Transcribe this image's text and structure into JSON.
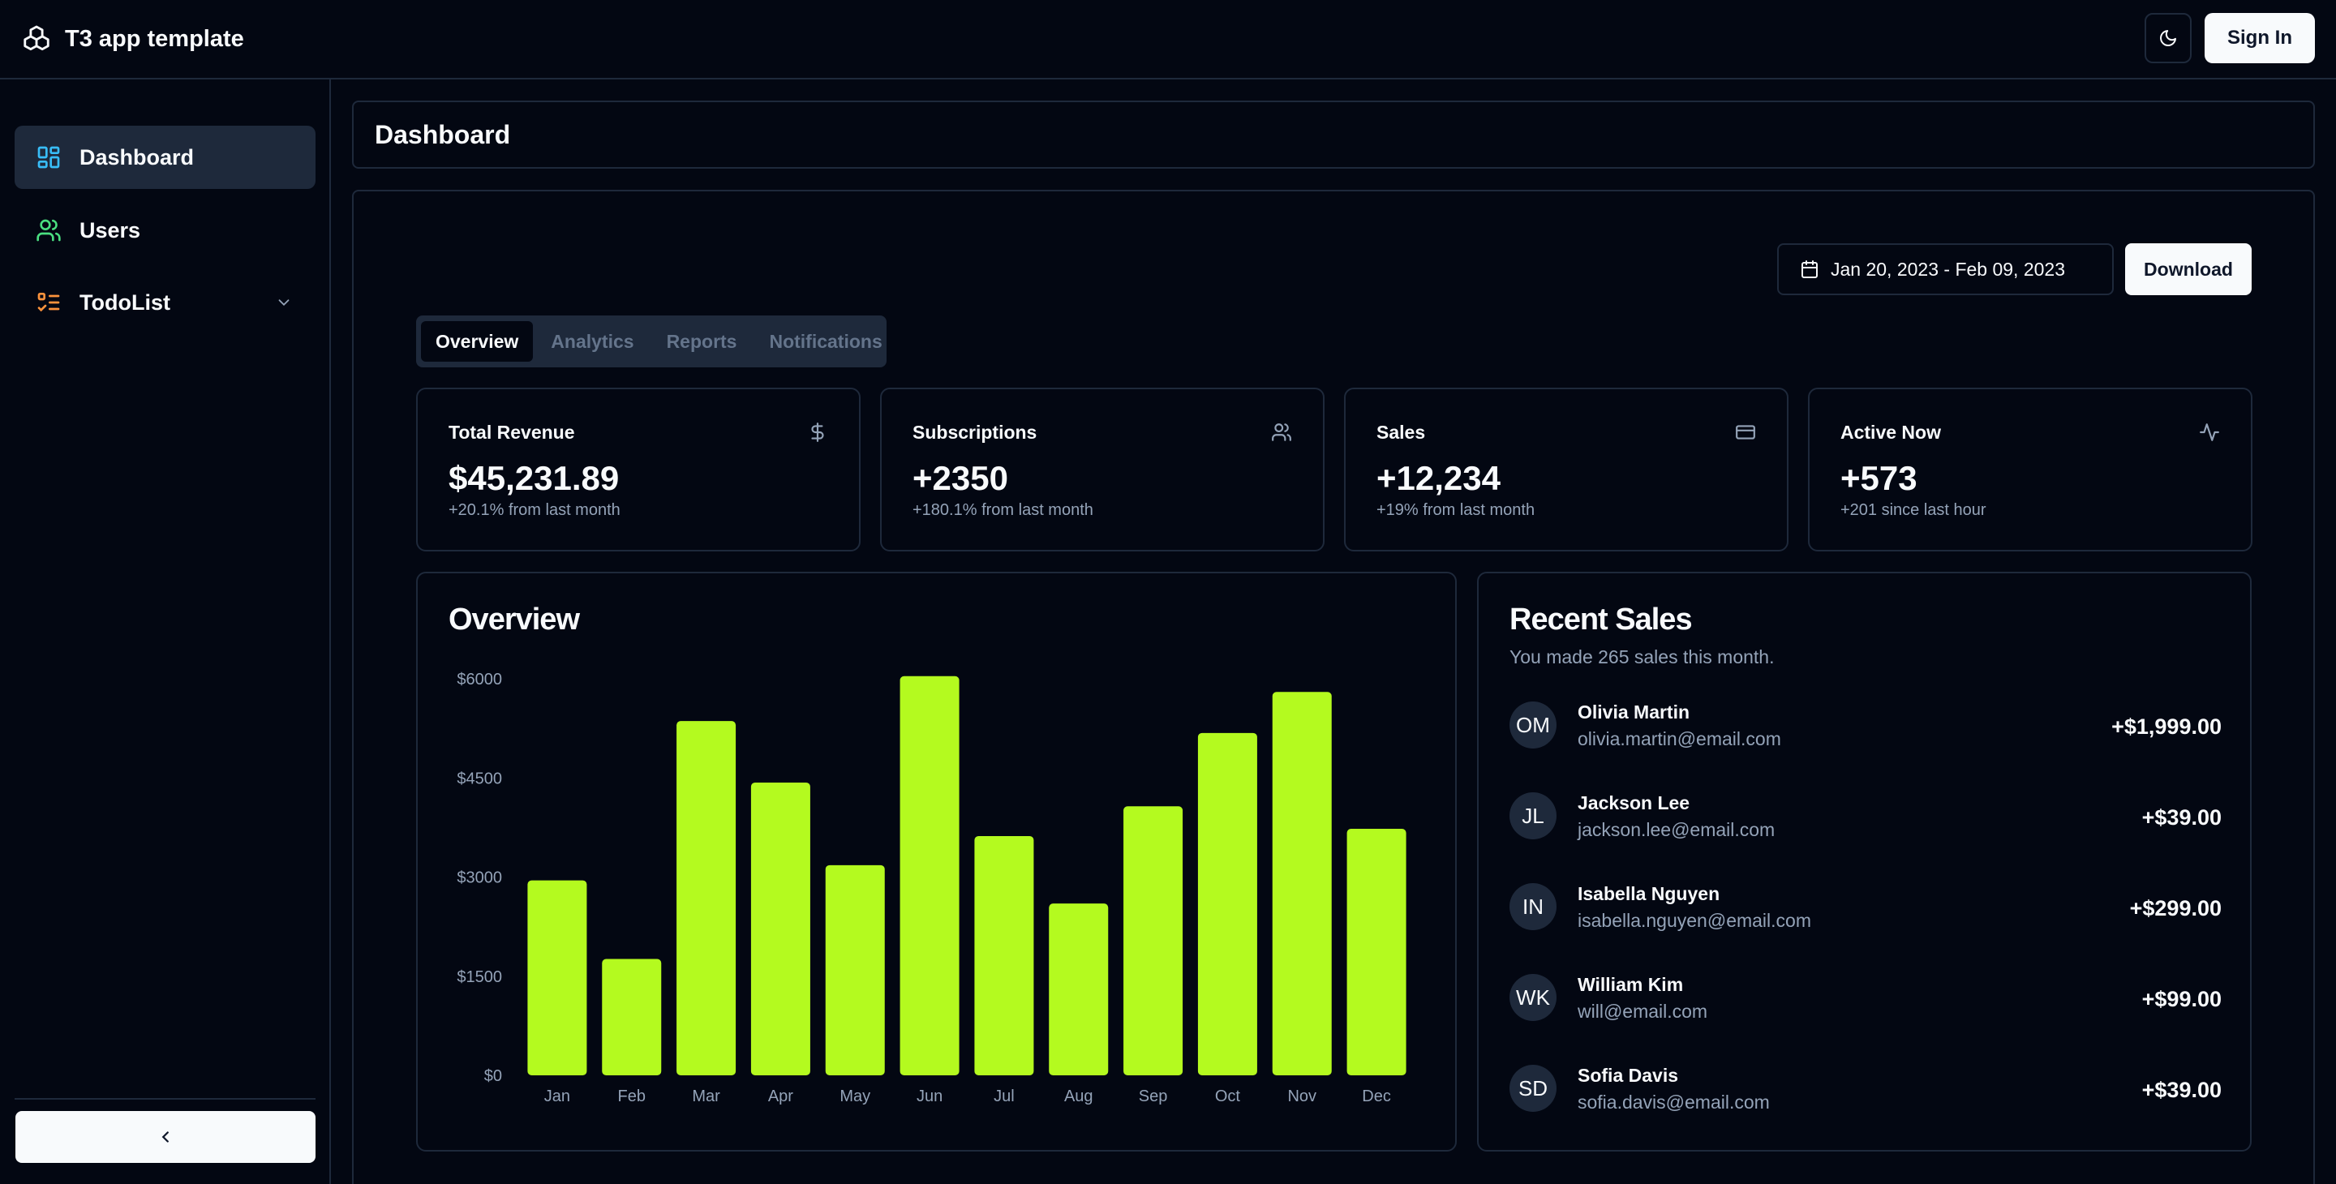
{
  "app": {
    "title": "T3 app template",
    "sign_in": "Sign In"
  },
  "sidebar": {
    "items": [
      {
        "label": "Dashboard",
        "icon": "dashboard-icon",
        "active": true,
        "color": "#38bdf8"
      },
      {
        "label": "Users",
        "icon": "users-icon",
        "active": false,
        "color": "#4ade80"
      },
      {
        "label": "TodoList",
        "icon": "todolist-icon",
        "active": false,
        "color": "#fb923c",
        "expandable": true
      }
    ]
  },
  "page": {
    "title": "Dashboard"
  },
  "toolbar": {
    "date_range": "Jan 20, 2023 - Feb 09, 2023",
    "download": "Download"
  },
  "tabs": [
    {
      "label": "Overview",
      "active": true
    },
    {
      "label": "Analytics",
      "active": false
    },
    {
      "label": "Reports",
      "active": false
    },
    {
      "label": "Notifications",
      "active": false
    }
  ],
  "stats": [
    {
      "title": "Total Revenue",
      "value": "$45,231.89",
      "change": "+20.1% from last month",
      "icon": "dollar-icon"
    },
    {
      "title": "Subscriptions",
      "value": "+2350",
      "change": "+180.1% from last month",
      "icon": "users-icon"
    },
    {
      "title": "Sales",
      "value": "+12,234",
      "change": "+19% from last month",
      "icon": "credit-card-icon"
    },
    {
      "title": "Active Now",
      "value": "+573",
      "change": "+201 since last hour",
      "icon": "activity-icon"
    }
  ],
  "overview": {
    "title": "Overview"
  },
  "chart_data": {
    "type": "bar",
    "title": "",
    "xlabel": "",
    "ylabel": "",
    "categories": [
      "Jan",
      "Feb",
      "Mar",
      "Apr",
      "May",
      "Jun",
      "Jul",
      "Aug",
      "Sep",
      "Oct",
      "Nov",
      "Dec"
    ],
    "values": [
      2950,
      1760,
      5360,
      4430,
      3180,
      6040,
      3620,
      2600,
      4070,
      5180,
      5800,
      3730
    ],
    "yticks": [
      "$0",
      "$1500",
      "$3000",
      "$4500",
      "$6000"
    ],
    "ylim": [
      0,
      6000
    ],
    "grid": false,
    "color": "#b4fa1f"
  },
  "recent_sales": {
    "title": "Recent Sales",
    "subtitle": "You made 265 sales this month.",
    "items": [
      {
        "initials": "OM",
        "name": "Olivia Martin",
        "email": "olivia.martin@email.com",
        "amount": "+$1,999.00"
      },
      {
        "initials": "JL",
        "name": "Jackson Lee",
        "email": "jackson.lee@email.com",
        "amount": "+$39.00"
      },
      {
        "initials": "IN",
        "name": "Isabella Nguyen",
        "email": "isabella.nguyen@email.com",
        "amount": "+$299.00"
      },
      {
        "initials": "WK",
        "name": "William Kim",
        "email": "will@email.com",
        "amount": "+$99.00"
      },
      {
        "initials": "SD",
        "name": "Sofia Davis",
        "email": "sofia.davis@email.com",
        "amount": "+$39.00"
      }
    ]
  }
}
